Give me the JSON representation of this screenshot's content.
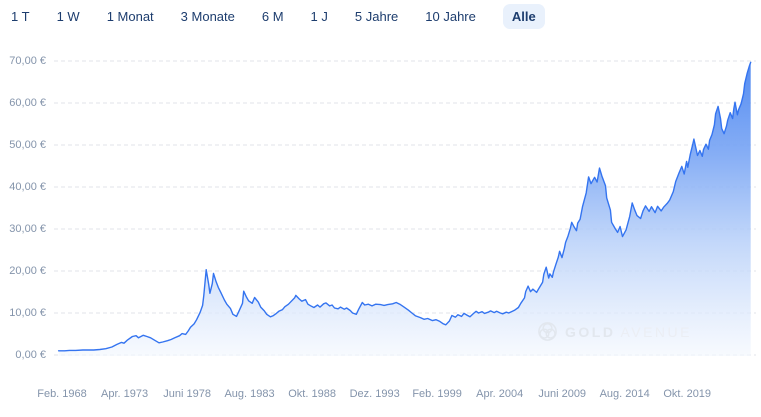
{
  "toolbar": {
    "ranges": [
      {
        "label": "1 T",
        "active": false
      },
      {
        "label": "1 W",
        "active": false
      },
      {
        "label": "1 Monat",
        "active": false
      },
      {
        "label": "3 Monate",
        "active": false
      },
      {
        "label": "6 M",
        "active": false
      },
      {
        "label": "1 J",
        "active": false
      },
      {
        "label": "5 Jahre",
        "active": false
      },
      {
        "label": "10 Jahre",
        "active": false
      },
      {
        "label": "Alle",
        "active": true
      }
    ],
    "active_bg": "#e9f1fc",
    "text_color": "#1d3d6e"
  },
  "watermark": {
    "brand_bold": "GOLD",
    "brand_light": "AVENUE",
    "icon": "goldavenue-rosette-icon",
    "color": "#e2e7ee"
  },
  "chart_data": {
    "type": "area",
    "title": "",
    "xlabel": "",
    "ylabel": "",
    "unit": "€",
    "grid": "dashed-horizontal",
    "legend": "none",
    "ylim": [
      0,
      70
    ],
    "line_color": "#3474f0",
    "fill_gradient": [
      "#4a85f0",
      "#79a5f4",
      "#b9d1f9",
      "#f4f8fe"
    ],
    "y_ticks": [
      {
        "label": "70,00 €",
        "v": 70
      },
      {
        "label": "60,00 €",
        "v": 60
      },
      {
        "label": "50,00 €",
        "v": 50
      },
      {
        "label": "40,00 €",
        "v": 40
      },
      {
        "label": "30,00 €",
        "v": 30
      },
      {
        "label": "20,00 €",
        "v": 20
      },
      {
        "label": "10,00 €",
        "v": 10
      },
      {
        "label": "0,00 €",
        "v": 0
      }
    ],
    "x_ticks": [
      {
        "label": "Feb. 1968",
        "t": 1968.08
      },
      {
        "label": "Apr. 1973",
        "t": 1973.25
      },
      {
        "label": "Juni 1978",
        "t": 1978.42
      },
      {
        "label": "Aug. 1983",
        "t": 1983.58
      },
      {
        "label": "Okt. 1988",
        "t": 1988.75
      },
      {
        "label": "Dez. 1993",
        "t": 1993.92
      },
      {
        "label": "Feb. 1999",
        "t": 1999.08
      },
      {
        "label": "Apr. 2004",
        "t": 2004.25
      },
      {
        "label": "Juni 2009",
        "t": 2009.42
      },
      {
        "label": "Aug. 2014",
        "t": 2014.58
      },
      {
        "label": "Okt. 2019",
        "t": 2019.75
      }
    ],
    "points": [
      [
        1967.8,
        1.0
      ],
      [
        1968.3,
        1.0
      ],
      [
        1968.7,
        1.1
      ],
      [
        1969.2,
        1.1
      ],
      [
        1969.8,
        1.2
      ],
      [
        1970.2,
        1.2
      ],
      [
        1970.7,
        1.2
      ],
      [
        1971.2,
        1.3
      ],
      [
        1971.7,
        1.5
      ],
      [
        1972.2,
        1.9
      ],
      [
        1972.6,
        2.5
      ],
      [
        1973.0,
        3.0
      ],
      [
        1973.2,
        2.8
      ],
      [
        1973.5,
        3.6
      ],
      [
        1973.9,
        4.4
      ],
      [
        1974.2,
        4.6
      ],
      [
        1974.4,
        4.1
      ],
      [
        1974.8,
        4.7
      ],
      [
        1975.1,
        4.4
      ],
      [
        1975.4,
        4.1
      ],
      [
        1975.8,
        3.4
      ],
      [
        1976.1,
        2.9
      ],
      [
        1976.4,
        3.1
      ],
      [
        1976.8,
        3.4
      ],
      [
        1977.1,
        3.7
      ],
      [
        1977.4,
        4.1
      ],
      [
        1977.8,
        4.6
      ],
      [
        1978.0,
        5.1
      ],
      [
        1978.3,
        4.9
      ],
      [
        1978.5,
        5.7
      ],
      [
        1978.7,
        6.6
      ],
      [
        1979.0,
        7.4
      ],
      [
        1979.2,
        8.4
      ],
      [
        1979.5,
        10.2
      ],
      [
        1979.7,
        11.8
      ],
      [
        1979.8,
        14.2
      ],
      [
        1980.0,
        20.3
      ],
      [
        1980.2,
        16.8
      ],
      [
        1980.3,
        14.7
      ],
      [
        1980.5,
        17.0
      ],
      [
        1980.6,
        19.4
      ],
      [
        1980.8,
        17.6
      ],
      [
        1981.0,
        16.1
      ],
      [
        1981.2,
        14.9
      ],
      [
        1981.5,
        13.1
      ],
      [
        1981.7,
        12.1
      ],
      [
        1982.0,
        11.1
      ],
      [
        1982.2,
        9.7
      ],
      [
        1982.5,
        9.2
      ],
      [
        1982.7,
        10.4
      ],
      [
        1983.0,
        12.3
      ],
      [
        1983.1,
        15.2
      ],
      [
        1983.3,
        13.9
      ],
      [
        1983.5,
        12.9
      ],
      [
        1983.8,
        12.3
      ],
      [
        1984.0,
        13.7
      ],
      [
        1984.3,
        12.6
      ],
      [
        1984.5,
        11.4
      ],
      [
        1984.8,
        10.5
      ],
      [
        1985.0,
        9.7
      ],
      [
        1985.3,
        9.1
      ],
      [
        1985.5,
        9.3
      ],
      [
        1985.8,
        9.9
      ],
      [
        1986.0,
        10.4
      ],
      [
        1986.3,
        10.8
      ],
      [
        1986.5,
        11.5
      ],
      [
        1986.8,
        12.1
      ],
      [
        1987.0,
        12.7
      ],
      [
        1987.3,
        13.6
      ],
      [
        1987.4,
        14.2
      ],
      [
        1987.7,
        13.3
      ],
      [
        1987.9,
        12.8
      ],
      [
        1988.2,
        13.2
      ],
      [
        1988.4,
        12.1
      ],
      [
        1988.7,
        11.6
      ],
      [
        1988.9,
        11.3
      ],
      [
        1989.2,
        11.9
      ],
      [
        1989.4,
        11.4
      ],
      [
        1989.7,
        12.2
      ],
      [
        1989.9,
        12.4
      ],
      [
        1990.2,
        11.7
      ],
      [
        1990.4,
        11.9
      ],
      [
        1990.6,
        11.2
      ],
      [
        1990.9,
        11.0
      ],
      [
        1991.1,
        11.4
      ],
      [
        1991.4,
        10.9
      ],
      [
        1991.6,
        11.2
      ],
      [
        1991.9,
        10.6
      ],
      [
        1992.1,
        10.0
      ],
      [
        1992.4,
        9.7
      ],
      [
        1992.6,
        10.9
      ],
      [
        1992.9,
        12.5
      ],
      [
        1993.1,
        11.9
      ],
      [
        1993.4,
        12.1
      ],
      [
        1993.7,
        11.7
      ],
      [
        1994.0,
        12.1
      ],
      [
        1994.4,
        12.0
      ],
      [
        1994.7,
        11.8
      ],
      [
        1995.0,
        12.0
      ],
      [
        1995.4,
        12.2
      ],
      [
        1995.7,
        12.5
      ],
      [
        1996.0,
        12.1
      ],
      [
        1996.3,
        11.5
      ],
      [
        1996.7,
        10.7
      ],
      [
        1997.0,
        10.0
      ],
      [
        1997.3,
        9.3
      ],
      [
        1997.7,
        8.9
      ],
      [
        1998.0,
        8.5
      ],
      [
        1998.3,
        8.7
      ],
      [
        1998.7,
        8.2
      ],
      [
        1999.0,
        8.4
      ],
      [
        1999.3,
        8.0
      ],
      [
        1999.6,
        7.4
      ],
      [
        1999.8,
        7.2
      ],
      [
        2000.1,
        8.1
      ],
      [
        2000.3,
        9.4
      ],
      [
        2000.6,
        9.0
      ],
      [
        2000.8,
        9.6
      ],
      [
        2001.1,
        9.2
      ],
      [
        2001.3,
        9.9
      ],
      [
        2001.6,
        9.4
      ],
      [
        2001.8,
        9.1
      ],
      [
        2002.1,
        9.9
      ],
      [
        2002.3,
        10.4
      ],
      [
        2002.5,
        10.0
      ],
      [
        2002.8,
        10.3
      ],
      [
        2003.0,
        9.9
      ],
      [
        2003.3,
        10.2
      ],
      [
        2003.5,
        10.5
      ],
      [
        2003.8,
        10.1
      ],
      [
        2004.0,
        10.4
      ],
      [
        2004.3,
        10.0
      ],
      [
        2004.5,
        9.8
      ],
      [
        2004.8,
        10.2
      ],
      [
        2005.0,
        10.0
      ],
      [
        2005.3,
        10.4
      ],
      [
        2005.5,
        10.7
      ],
      [
        2005.8,
        11.3
      ],
      [
        2006.0,
        12.3
      ],
      [
        2006.3,
        13.6
      ],
      [
        2006.4,
        15.1
      ],
      [
        2006.6,
        16.4
      ],
      [
        2006.8,
        15.1
      ],
      [
        2007.0,
        15.7
      ],
      [
        2007.3,
        14.9
      ],
      [
        2007.5,
        15.9
      ],
      [
        2007.8,
        17.3
      ],
      [
        2007.9,
        19.2
      ],
      [
        2008.1,
        20.9
      ],
      [
        2008.3,
        18.3
      ],
      [
        2008.4,
        19.3
      ],
      [
        2008.6,
        18.5
      ],
      [
        2008.7,
        19.8
      ],
      [
        2008.9,
        21.6
      ],
      [
        2009.1,
        23.3
      ],
      [
        2009.2,
        24.7
      ],
      [
        2009.4,
        23.2
      ],
      [
        2009.6,
        25.4
      ],
      [
        2009.7,
        26.8
      ],
      [
        2009.9,
        28.3
      ],
      [
        2010.1,
        30.2
      ],
      [
        2010.2,
        31.6
      ],
      [
        2010.4,
        30.5
      ],
      [
        2010.6,
        29.6
      ],
      [
        2010.7,
        31.4
      ],
      [
        2010.9,
        32.3
      ],
      [
        2011.1,
        35.3
      ],
      [
        2011.4,
        38.6
      ],
      [
        2011.6,
        42.4
      ],
      [
        2011.8,
        40.8
      ],
      [
        2012.1,
        42.3
      ],
      [
        2012.3,
        41.2
      ],
      [
        2012.5,
        44.5
      ],
      [
        2012.7,
        42.6
      ],
      [
        2013.0,
        40.3
      ],
      [
        2013.1,
        37.4
      ],
      [
        2013.4,
        34.5
      ],
      [
        2013.5,
        31.6
      ],
      [
        2013.8,
        30.1
      ],
      [
        2014.0,
        29.2
      ],
      [
        2014.2,
        30.6
      ],
      [
        2014.4,
        28.2
      ],
      [
        2014.7,
        29.8
      ],
      [
        2015.0,
        33.0
      ],
      [
        2015.2,
        36.2
      ],
      [
        2015.4,
        34.6
      ],
      [
        2015.6,
        33.2
      ],
      [
        2015.9,
        32.5
      ],
      [
        2016.1,
        34.3
      ],
      [
        2016.3,
        35.5
      ],
      [
        2016.6,
        34.2
      ],
      [
        2016.8,
        35.3
      ],
      [
        2017.1,
        33.9
      ],
      [
        2017.3,
        35.4
      ],
      [
        2017.6,
        34.3
      ],
      [
        2017.8,
        35.2
      ],
      [
        2018.1,
        36.1
      ],
      [
        2018.3,
        36.9
      ],
      [
        2018.6,
        38.9
      ],
      [
        2018.8,
        41.3
      ],
      [
        2019.1,
        43.5
      ],
      [
        2019.3,
        44.9
      ],
      [
        2019.5,
        43.1
      ],
      [
        2019.7,
        46.1
      ],
      [
        2019.8,
        44.7
      ],
      [
        2020.0,
        47.7
      ],
      [
        2020.2,
        50.1
      ],
      [
        2020.3,
        51.4
      ],
      [
        2020.5,
        48.8
      ],
      [
        2020.6,
        47.5
      ],
      [
        2020.8,
        48.7
      ],
      [
        2021.0,
        47.3
      ],
      [
        2021.1,
        48.9
      ],
      [
        2021.3,
        50.2
      ],
      [
        2021.5,
        49.0
      ],
      [
        2021.6,
        51.1
      ],
      [
        2021.8,
        52.5
      ],
      [
        2022.0,
        54.8
      ],
      [
        2022.1,
        57.4
      ],
      [
        2022.3,
        59.2
      ],
      [
        2022.5,
        56.3
      ],
      [
        2022.6,
        53.9
      ],
      [
        2022.8,
        52.7
      ],
      [
        2023.0,
        54.5
      ],
      [
        2023.1,
        55.9
      ],
      [
        2023.3,
        57.7
      ],
      [
        2023.5,
        56.3
      ],
      [
        2023.6,
        58.6
      ],
      [
        2023.7,
        60.2
      ],
      [
        2023.9,
        57.2
      ],
      [
        2024.0,
        58.4
      ],
      [
        2024.2,
        59.8
      ],
      [
        2024.4,
        62.2
      ],
      [
        2024.5,
        64.6
      ],
      [
        2024.7,
        67.0
      ],
      [
        2024.9,
        68.9
      ],
      [
        2025.0,
        69.7
      ]
    ]
  }
}
